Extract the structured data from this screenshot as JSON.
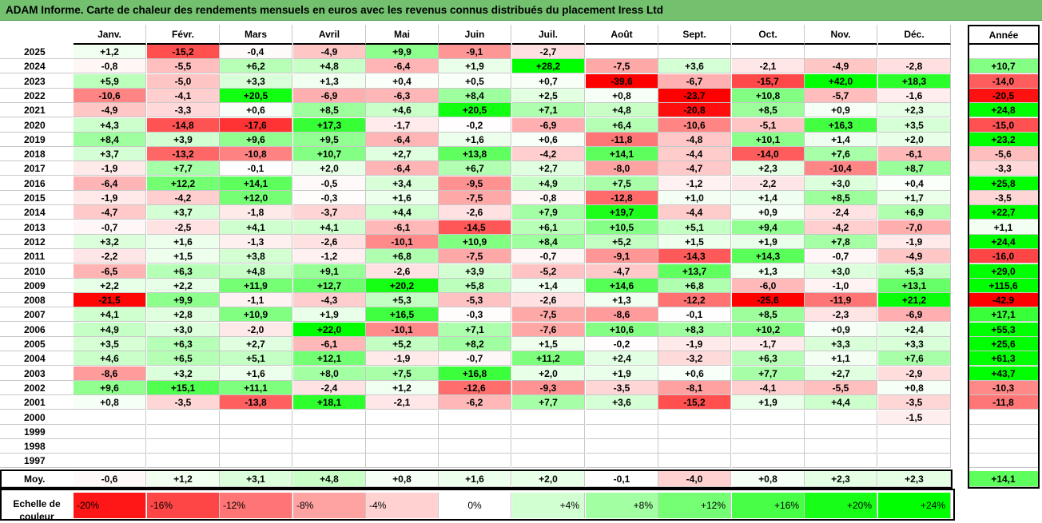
{
  "title": "ADAM Informe. Carte de chaleur des rendements mensuels en euros avec les revenus connus distribués du placement Iress Ltd",
  "chart_data": {
    "type": "heatmap",
    "title": "ADAM Informe. Carte de chaleur des rendements mensuels en euros avec les revenus connus distribués du placement Iress Ltd",
    "columns": [
      "Janv.",
      "Févr.",
      "Mars",
      "Avril",
      "Mai",
      "Juin",
      "Juil.",
      "Août",
      "Sept.",
      "Oct.",
      "Nov.",
      "Déc."
    ],
    "year_column_label": "Année",
    "rows": [
      {
        "year": "2025",
        "months": [
          "+1,2",
          "-15,2",
          "-0,4",
          "-4,9",
          "+9,9",
          "-9,1",
          "-2,7",
          "",
          "",
          "",
          "",
          ""
        ],
        "year_total": ""
      },
      {
        "year": "2024",
        "months": [
          "-0,8",
          "-5,5",
          "+6,2",
          "+4,8",
          "-6,4",
          "+1,9",
          "+28,2",
          "-7,5",
          "+3,6",
          "-2,1",
          "-4,9",
          "-2,8"
        ],
        "year_total": "+10,7"
      },
      {
        "year": "2023",
        "months": [
          "+5,9",
          "-5,0",
          "+3,3",
          "+1,3",
          "+0,4",
          "+0,5",
          "+0,7",
          "-39,6",
          "-6,7",
          "-15,7",
          "+42,0",
          "+18,3"
        ],
        "year_total": "-14,0"
      },
      {
        "year": "2022",
        "months": [
          "-10,6",
          "-4,1",
          "+20,5",
          "-6,9",
          "-6,3",
          "+8,4",
          "+2,5",
          "+0,8",
          "-23,7",
          "+10,8",
          "-5,7",
          "-1,6"
        ],
        "year_total": "-20,5"
      },
      {
        "year": "2021",
        "months": [
          "-4,9",
          "-3,3",
          "+0,6",
          "+8,5",
          "+4,6",
          "+20,5",
          "+7,1",
          "+4,8",
          "-20,8",
          "+8,5",
          "+0,9",
          "+2,3"
        ],
        "year_total": "+24,8"
      },
      {
        "year": "2020",
        "months": [
          "+4,3",
          "-14,8",
          "-17,6",
          "+17,3",
          "-1,7",
          "-0,2",
          "-6,9",
          "+6,4",
          "-10,6",
          "-5,1",
          "+16,3",
          "+3,5"
        ],
        "year_total": "-15,0"
      },
      {
        "year": "2019",
        "months": [
          "+8,4",
          "+3,9",
          "+9,6",
          "+9,5",
          "-6,4",
          "+1,6",
          "+0,6",
          "-11,8",
          "-4,8",
          "+10,1",
          "+1,4",
          "+2,0"
        ],
        "year_total": "+23,2"
      },
      {
        "year": "2018",
        "months": [
          "+3,7",
          "-13,2",
          "-10,8",
          "+10,7",
          "+2,7",
          "+13,8",
          "-4,2",
          "+14,1",
          "-4,4",
          "-14,0",
          "+7,6",
          "-6,1"
        ],
        "year_total": "-5,6"
      },
      {
        "year": "2017",
        "months": [
          "-1,9",
          "+7,7",
          "-0,1",
          "+2,0",
          "-6,4",
          "+6,7",
          "+2,7",
          "-8,0",
          "-4,7",
          "+2,3",
          "-10,4",
          "+8,7"
        ],
        "year_total": "-3,3"
      },
      {
        "year": "2016",
        "months": [
          "-6,4",
          "+12,2",
          "+14,1",
          "-0,5",
          "+3,4",
          "-9,5",
          "+4,9",
          "+7,5",
          "-1,2",
          "-2,2",
          "+3,0",
          "+0,4"
        ],
        "year_total": "+25,8"
      },
      {
        "year": "2015",
        "months": [
          "-1,9",
          "-4,2",
          "+12,0",
          "-0,3",
          "+1,6",
          "-7,5",
          "-0,8",
          "-12,8",
          "+1,0",
          "+1,4",
          "+8,5",
          "+1,7"
        ],
        "year_total": "-3,5"
      },
      {
        "year": "2014",
        "months": [
          "-4,7",
          "+3,7",
          "-1,8",
          "-3,7",
          "+4,4",
          "-2,6",
          "+7,9",
          "+19,7",
          "-4,4",
          "+0,9",
          "-2,4",
          "+6,9"
        ],
        "year_total": "+22,7"
      },
      {
        "year": "2013",
        "months": [
          "-0,7",
          "-2,5",
          "+4,1",
          "+4,1",
          "-6,1",
          "-14,5",
          "+6,1",
          "+10,5",
          "+5,1",
          "+9,4",
          "-4,2",
          "-7,0"
        ],
        "year_total": "+1,1"
      },
      {
        "year": "2012",
        "months": [
          "+3,2",
          "+1,6",
          "-1,3",
          "-2,6",
          "-10,1",
          "+10,9",
          "+8,4",
          "+5,2",
          "+1,5",
          "+1,9",
          "+7,8",
          "-1,9"
        ],
        "year_total": "+24,4"
      },
      {
        "year": "2011",
        "months": [
          "-2,2",
          "+1,5",
          "+3,8",
          "-1,2",
          "+6,8",
          "-7,5",
          "-0,7",
          "-9,1",
          "-14,3",
          "+14,3",
          "-0,7",
          "-4,9"
        ],
        "year_total": "-16,0"
      },
      {
        "year": "2010",
        "months": [
          "-6,5",
          "+6,3",
          "+4,8",
          "+9,1",
          "-2,6",
          "+3,9",
          "-5,2",
          "-4,7",
          "+13,7",
          "+1,3",
          "+3,0",
          "+5,3"
        ],
        "year_total": "+29,0"
      },
      {
        "year": "2009",
        "months": [
          "+2,2",
          "+2,2",
          "+11,9",
          "+12,7",
          "+20,2",
          "+5,8",
          "+1,4",
          "+14,6",
          "+6,8",
          "-6,0",
          "-1,0",
          "+13,1"
        ],
        "year_total": "+115,6"
      },
      {
        "year": "2008",
        "months": [
          "-21,5",
          "+9,9",
          "-1,1",
          "-4,3",
          "+5,3",
          "-5,3",
          "-2,6",
          "+1,3",
          "-12,2",
          "-25,6",
          "-11,9",
          "+21,2"
        ],
        "year_total": "-42,9"
      },
      {
        "year": "2007",
        "months": [
          "+4,1",
          "+2,8",
          "+10,9",
          "+1,9",
          "+16,5",
          "-0,3",
          "-7,5",
          "-8,6",
          "-0,1",
          "+8,5",
          "-2,3",
          "-6,9"
        ],
        "year_total": "+17,1"
      },
      {
        "year": "2006",
        "months": [
          "+4,9",
          "+3,0",
          "-2,0",
          "+22,0",
          "-10,1",
          "+7,1",
          "-7,6",
          "+10,6",
          "+8,3",
          "+10,2",
          "+0,9",
          "+2,4"
        ],
        "year_total": "+55,3"
      },
      {
        "year": "2005",
        "months": [
          "+3,5",
          "+6,3",
          "+2,7",
          "-6,1",
          "+5,2",
          "+8,2",
          "+1,5",
          "-0,2",
          "-1,9",
          "-1,7",
          "+3,3",
          "+3,3"
        ],
        "year_total": "+25,6"
      },
      {
        "year": "2004",
        "months": [
          "+4,6",
          "+6,5",
          "+5,1",
          "+12,1",
          "-1,9",
          "-0,7",
          "+11,2",
          "+2,4",
          "-3,2",
          "+6,3",
          "+1,1",
          "+7,6"
        ],
        "year_total": "+61,3"
      },
      {
        "year": "2003",
        "months": [
          "-8,6",
          "+3,2",
          "+1,6",
          "+8,0",
          "+7,5",
          "+16,8",
          "+2,0",
          "+1,9",
          "+0,6",
          "+7,7",
          "+2,7",
          "-2,9"
        ],
        "year_total": "+43,7"
      },
      {
        "year": "2002",
        "months": [
          "+9,6",
          "+15,1",
          "+11,1",
          "-2,4",
          "+1,2",
          "-12,6",
          "-9,3",
          "-3,5",
          "-8,1",
          "-4,1",
          "-5,5",
          "+0,8"
        ],
        "year_total": "-10,3"
      },
      {
        "year": "2001",
        "months": [
          "+0,8",
          "-3,5",
          "-13,8",
          "+18,1",
          "-2,1",
          "-6,2",
          "+7,7",
          "+3,6",
          "-15,2",
          "+1,9",
          "+4,4",
          "-3,5"
        ],
        "year_total": "-11,8"
      },
      {
        "year": "2000",
        "months": [
          "",
          "",
          "",
          "",
          "",
          "",
          "",
          "",
          "",
          "",
          "",
          "-1,5"
        ],
        "year_total": ""
      },
      {
        "year": "1999",
        "months": [
          "",
          "",
          "",
          "",
          "",
          "",
          "",
          "",
          "",
          "",
          "",
          ""
        ],
        "year_total": ""
      },
      {
        "year": "1998",
        "months": [
          "",
          "",
          "",
          "",
          "",
          "",
          "",
          "",
          "",
          "",
          "",
          ""
        ],
        "year_total": ""
      },
      {
        "year": "1997",
        "months": [
          "",
          "",
          "",
          "",
          "",
          "",
          "",
          "",
          "",
          "",
          "",
          ""
        ],
        "year_total": ""
      }
    ],
    "average": {
      "label": "Moy.",
      "months": [
        "-0,6",
        "+1,2",
        "+3,1",
        "+4,8",
        "+0,8",
        "+1,6",
        "+2,0",
        "-0,1",
        "-4,0",
        "+0,8",
        "+2,3",
        "+2,3"
      ],
      "year_total": "+14,1"
    },
    "color_scale": {
      "label": "Echelle de couleur",
      "entries": [
        "-20%",
        "-16%",
        "-12%",
        "-8%",
        "-4%",
        "0%",
        "+4%",
        "+8%",
        "+12%",
        "+16%",
        "+20%",
        "+24%"
      ],
      "negative_color": "#ff0000",
      "neutral_color": "#ffffff",
      "positive_color": "#00ff00"
    }
  }
}
